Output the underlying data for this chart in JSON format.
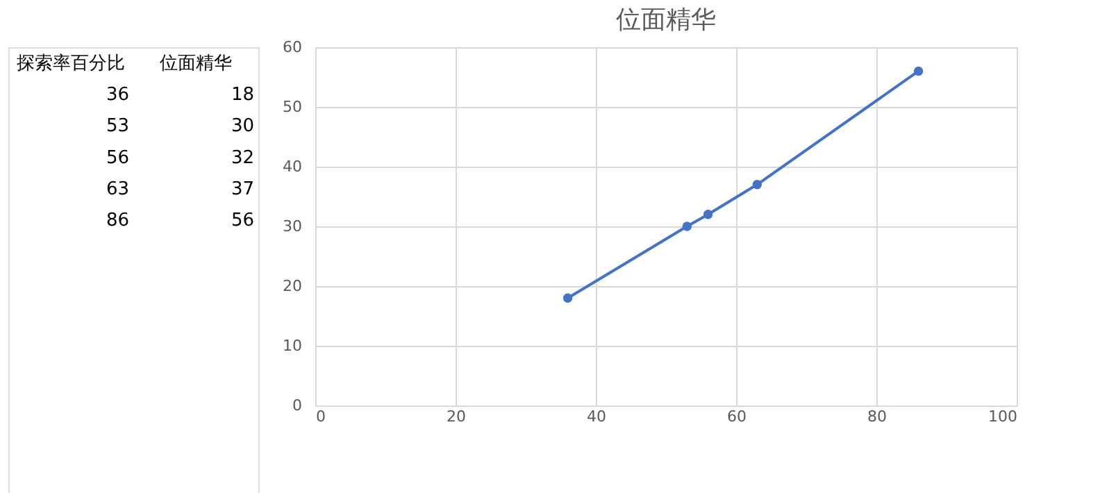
{
  "chart_data": [
    {
      "type": "other",
      "annotations": [
        "探索率百分比",
        "位面精华",
        "36",
        "18",
        "53",
        "30",
        "56",
        "32",
        "63",
        "37",
        "86",
        "56"
      ]
    },
    {
      "type": "line",
      "title": "位面精华",
      "x": [
        36,
        53,
        56,
        63,
        86
      ],
      "series": [
        {
          "color": "#4472c4",
          "values": [
            18,
            30,
            32,
            37,
            56
          ]
        }
      ],
      "xlim": [
        0,
        100
      ],
      "xticks": [
        0,
        20,
        40,
        60,
        80,
        100
      ],
      "ylim": [
        0,
        60
      ],
      "yticks": [
        0,
        10,
        20,
        30,
        40,
        50,
        60
      ],
      "grid": true,
      "marker": "circle"
    }
  ]
}
